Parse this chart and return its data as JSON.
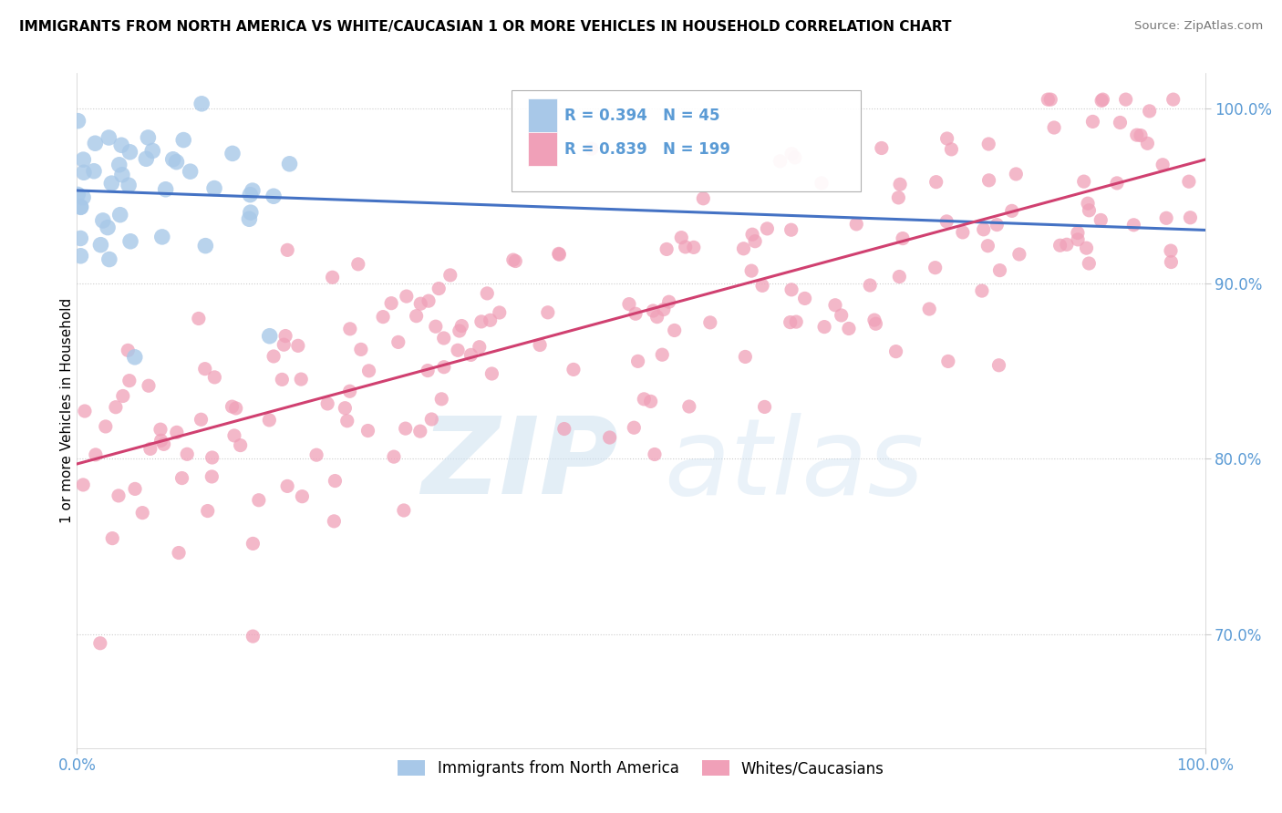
{
  "title": "IMMIGRANTS FROM NORTH AMERICA VS WHITE/CAUCASIAN 1 OR MORE VEHICLES IN HOUSEHOLD CORRELATION CHART",
  "source": "Source: ZipAtlas.com",
  "ylabel": "1 or more Vehicles in Household",
  "blue_R": 0.394,
  "blue_N": 45,
  "pink_R": 0.839,
  "pink_N": 199,
  "blue_color": "#a8c8e8",
  "pink_color": "#f0a0b8",
  "blue_line_color": "#4472c4",
  "pink_line_color": "#d04070",
  "legend_label_blue": "Immigrants from North America",
  "legend_label_pink": "Whites/Caucasians",
  "watermark_zip": "ZIP",
  "watermark_atlas": "atlas",
  "xlim": [
    0.0,
    1.0
  ],
  "ylim": [
    0.635,
    1.02
  ],
  "y_tick_positions": [
    0.7,
    0.8,
    0.9,
    1.0
  ],
  "y_tick_labels": [
    "70.0%",
    "80.0%",
    "90.0%",
    "100.0%"
  ],
  "tick_color": "#5b9bd5",
  "title_fontsize": 11,
  "axis_fontsize": 12
}
